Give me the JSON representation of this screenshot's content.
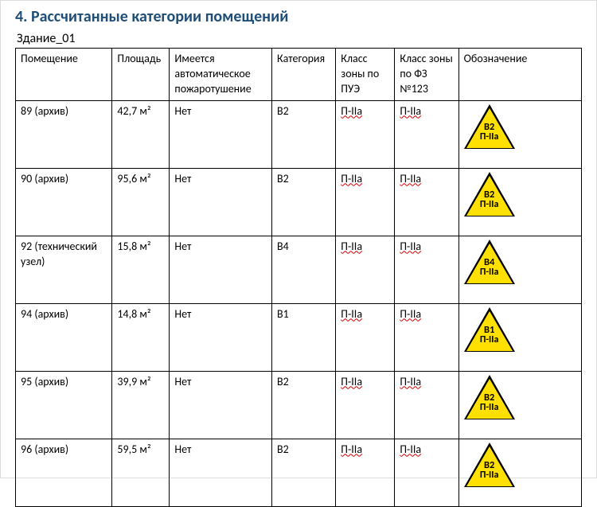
{
  "title": "4. Рассчитанные категории помещений",
  "building": "Здание_01",
  "columns": {
    "room": "Помещение",
    "area": "Площадь",
    "auto": "Имеется автоматическое пожаротушение",
    "cat": "Категория",
    "pue": "Класс зоны по ПУЭ",
    "fz": "Класс зоны по ФЗ №123",
    "sign": "Обозначение"
  },
  "zone_label": "П-IIа",
  "rows": [
    {
      "room": "89 (архив)",
      "area": "42,7 м²",
      "auto": "Нет",
      "cat": "В2",
      "pue": "П-IIа",
      "fz": "П-IIа",
      "sign_top": "В2",
      "sign_bottom": "П-IIа"
    },
    {
      "room": "90 (архив)",
      "area": "95,6 м²",
      "auto": "Нет",
      "cat": "В2",
      "pue": "П-IIа",
      "fz": "П-IIа",
      "sign_top": "В2",
      "sign_bottom": "П-IIа"
    },
    {
      "room": "92 (технический узел)",
      "area": "15,8 м²",
      "auto": "Нет",
      "cat": "В4",
      "pue": "П-IIа",
      "fz": "П-IIа",
      "sign_top": "В4",
      "sign_bottom": "П-IIа"
    },
    {
      "room": "94 (архив)",
      "area": "14,8 м²",
      "auto": "Нет",
      "cat": "В1",
      "pue": "П-IIа",
      "fz": "П-IIа",
      "sign_top": "В1",
      "sign_bottom": "П-IIа"
    },
    {
      "room": "95 (архив)",
      "area": "39,9 м²",
      "auto": "Нет",
      "cat": "В2",
      "pue": "П-IIа",
      "fz": "П-IIа",
      "sign_top": "В2",
      "sign_bottom": "П-IIа"
    },
    {
      "room": "96 (архив)",
      "area": "59,5 м²",
      "auto": "Нет",
      "cat": "В2",
      "pue": "П-IIа",
      "fz": "П-IIа",
      "sign_top": "В2",
      "sign_bottom": "П-IIа"
    }
  ],
  "style": {
    "title_color": "#1f4e79",
    "triangle_fill": "#ffe000",
    "triangle_border": "#000000",
    "spellcheck_wave_color": "#d90000",
    "cell_border_color": "#000000",
    "background": "#ffffff",
    "font_family": "Calibri",
    "title_fontsize_pt": 15,
    "body_fontsize_pt": 11
  }
}
